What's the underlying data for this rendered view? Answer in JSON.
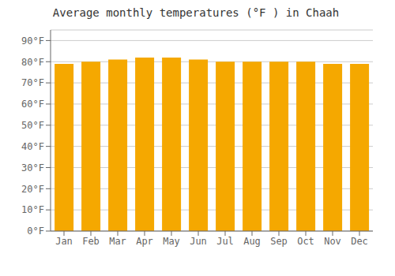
{
  "chart_data": {
    "type": "bar",
    "title": "Average monthly temperatures (°F ) in Chaah",
    "categories": [
      "Jan",
      "Feb",
      "Mar",
      "Apr",
      "May",
      "Jun",
      "Jul",
      "Aug",
      "Sep",
      "Oct",
      "Nov",
      "Dec"
    ],
    "values": [
      79,
      80,
      81,
      82,
      82,
      81,
      80,
      80,
      80,
      80,
      79,
      79
    ],
    "color": "#F5A800",
    "ylim": [
      0,
      95
    ],
    "yticks": [
      {
        "value": 0,
        "label": "0°F"
      },
      {
        "value": 10,
        "label": "10°F"
      },
      {
        "value": 20,
        "label": "20°F"
      },
      {
        "value": 30,
        "label": "30°F"
      },
      {
        "value": 40,
        "label": "40°F"
      },
      {
        "value": 50,
        "label": "50°F"
      },
      {
        "value": 60,
        "label": "60°F"
      },
      {
        "value": 70,
        "label": "70°F"
      },
      {
        "value": 80,
        "label": "80°F"
      },
      {
        "value": 90,
        "label": "90°F"
      }
    ],
    "grid": true
  }
}
